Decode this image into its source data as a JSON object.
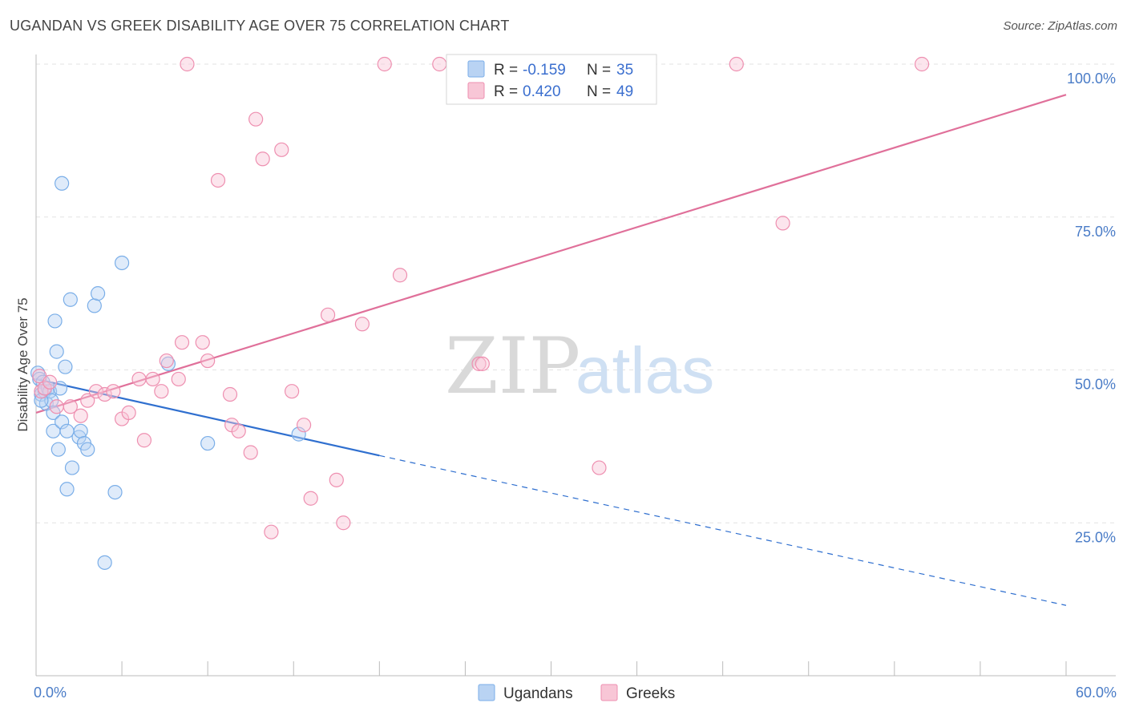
{
  "header": {
    "title": "UGANDAN VS GREEK DISABILITY AGE OVER 75 CORRELATION CHART",
    "source": "Source: ZipAtlas.com"
  },
  "watermark": {
    "zip": "ZIP",
    "atlas": "atlas"
  },
  "chart_data": {
    "type": "scatter",
    "title": "UGANDAN VS GREEK DISABILITY AGE OVER 75 CORRELATION CHART",
    "xlabel": "",
    "ylabel": "Disability Age Over 75",
    "xlim": [
      0,
      60
    ],
    "ylim": [
      0,
      100
    ],
    "x_tick_labels": [
      {
        "value": 0,
        "label": "0.0%"
      },
      {
        "value": 60,
        "label": "60.0%"
      }
    ],
    "y_tick_labels": [
      {
        "value": 25,
        "label": "25.0%"
      },
      {
        "value": 50,
        "label": "50.0%"
      },
      {
        "value": 75,
        "label": "75.0%"
      },
      {
        "value": 100,
        "label": "100.0%"
      }
    ],
    "grid": true,
    "legend_position": "top-center",
    "stats": [
      {
        "series": "Ugandans",
        "r_label": "R =",
        "r_value": "-0.159",
        "n_label": "N =",
        "n_value": "35",
        "color": "#7aaee8",
        "fill": "#b9d3f3"
      },
      {
        "series": "Greeks",
        "r_label": "R =",
        "r_value": "0.420",
        "n_label": "N =",
        "n_value": "49",
        "color": "#ee8fb0",
        "fill": "#f8c6d6"
      }
    ],
    "series": [
      {
        "name": "Ugandans",
        "color": "#7aaee8",
        "line_color": "#2f6fcf",
        "trend": {
          "x0": 0,
          "y0": 48.5,
          "x1": 20,
          "y1": 36.0,
          "dash_to_x": 60,
          "dash_to_y": 11.5
        },
        "points": [
          [
            0.1,
            49.5
          ],
          [
            0.2,
            48.5
          ],
          [
            0.3,
            46.0
          ],
          [
            0.4,
            48.0
          ],
          [
            0.5,
            46.5
          ],
          [
            0.6,
            44.5
          ],
          [
            0.7,
            47.0
          ],
          [
            0.8,
            46.5
          ],
          [
            0.9,
            45.0
          ],
          [
            1.0,
            43.0
          ],
          [
            1.0,
            40.0
          ],
          [
            1.1,
            58.0
          ],
          [
            1.2,
            53.0
          ],
          [
            1.3,
            37.0
          ],
          [
            1.4,
            47.0
          ],
          [
            1.5,
            41.5
          ],
          [
            1.5,
            80.5
          ],
          [
            1.7,
            50.5
          ],
          [
            1.8,
            40.0
          ],
          [
            1.8,
            30.5
          ],
          [
            2.0,
            61.5
          ],
          [
            2.1,
            34.0
          ],
          [
            2.5,
            39.0
          ],
          [
            2.6,
            40.0
          ],
          [
            2.8,
            38.0
          ],
          [
            3.0,
            37.0
          ],
          [
            3.4,
            60.5
          ],
          [
            3.6,
            62.5
          ],
          [
            4.0,
            18.5
          ],
          [
            4.6,
            30.0
          ],
          [
            5.0,
            67.5
          ],
          [
            7.7,
            51.0
          ],
          [
            10.0,
            38.0
          ],
          [
            15.3,
            39.5
          ],
          [
            0.3,
            45.0
          ]
        ]
      },
      {
        "name": "Greeks",
        "color": "#ee8fb0",
        "line_color": "#e0709a",
        "trend": {
          "x0": 0,
          "y0": 43.0,
          "x1": 60,
          "y1": 95.0
        },
        "points": [
          [
            0.2,
            49.0
          ],
          [
            0.3,
            46.5
          ],
          [
            0.5,
            47.0
          ],
          [
            0.8,
            48.0
          ],
          [
            1.2,
            44.0
          ],
          [
            2.0,
            44.0
          ],
          [
            2.6,
            42.5
          ],
          [
            3.0,
            45.0
          ],
          [
            3.5,
            46.5
          ],
          [
            4.0,
            46.0
          ],
          [
            4.5,
            46.5
          ],
          [
            5.0,
            42.0
          ],
          [
            5.4,
            43.0
          ],
          [
            6.0,
            48.5
          ],
          [
            6.3,
            38.5
          ],
          [
            6.8,
            48.5
          ],
          [
            7.3,
            46.5
          ],
          [
            7.6,
            51.5
          ],
          [
            8.3,
            48.5
          ],
          [
            8.5,
            54.5
          ],
          [
            8.8,
            100.0
          ],
          [
            9.7,
            54.5
          ],
          [
            10.0,
            51.5
          ],
          [
            10.6,
            81.0
          ],
          [
            11.3,
            46.0
          ],
          [
            11.4,
            41.0
          ],
          [
            11.8,
            40.0
          ],
          [
            12.5,
            36.5
          ],
          [
            12.8,
            91.0
          ],
          [
            13.2,
            84.5
          ],
          [
            13.7,
            23.5
          ],
          [
            14.3,
            86.0
          ],
          [
            14.9,
            46.5
          ],
          [
            15.6,
            41.0
          ],
          [
            16.0,
            29.0
          ],
          [
            17.0,
            59.0
          ],
          [
            17.5,
            32.0
          ],
          [
            17.9,
            25.0
          ],
          [
            19.0,
            57.5
          ],
          [
            20.3,
            100.0
          ],
          [
            21.2,
            65.5
          ],
          [
            23.5,
            100.0
          ],
          [
            24.7,
            100.0
          ],
          [
            25.8,
            51.0
          ],
          [
            26.0,
            51.0
          ],
          [
            32.8,
            34.0
          ],
          [
            40.8,
            100.0
          ],
          [
            43.5,
            74.0
          ],
          [
            51.6,
            100.0
          ]
        ]
      }
    ]
  },
  "bottom_legend": [
    {
      "label": "Ugandans",
      "fill": "#b9d3f3",
      "stroke": "#7aaee8"
    },
    {
      "label": "Greeks",
      "fill": "#f8c6d6",
      "stroke": "#ee8fb0"
    }
  ]
}
